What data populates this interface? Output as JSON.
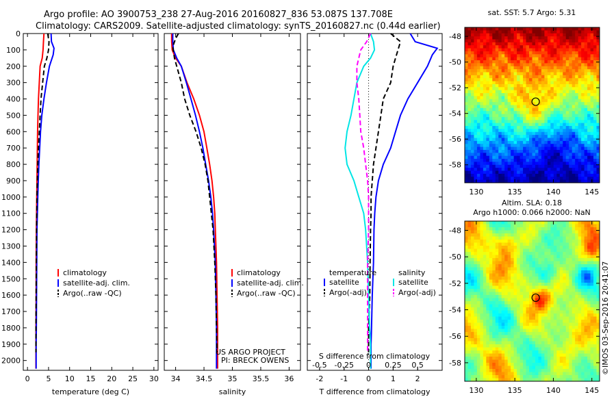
{
  "header": {
    "title_line1": "Argo profile: AO 3900753_238 27-Aug-2016 20160827_836 53.087S 137.708E",
    "title_line2": "Climatology: CARS2009. Satellite-adjusted climatology: synTS_20160827.nc (0.44d earlier)"
  },
  "credits": {
    "project": "US ARGO PROJECT",
    "pi": "PI: BRECK OWENS",
    "stamp": "©IMOS 03-Sep-2016 20:41:07"
  },
  "colors": {
    "climatology": "#ff0000",
    "satellite": "#0000ff",
    "argo": "#000000",
    "salinity_satellite": "#00e5e5",
    "salinity_argo": "#ff00ff"
  },
  "legend_profiles": [
    {
      "label": "climatology",
      "color": "#ff0000",
      "dash": false
    },
    {
      "label": "satellite-adj. clim.",
      "color": "#0000ff",
      "dash": false
    },
    {
      "label": "Argo(..raw -QC)",
      "color": "#000000",
      "dash": true
    }
  ],
  "legend_diff": {
    "temperature_header": "temperature",
    "salinity_header": "salinity",
    "temperature_items": [
      {
        "label": "satellite",
        "color": "#0000ff",
        "dash": false
      },
      {
        "label": "Argo(-adj)",
        "color": "#000000",
        "dash": true
      }
    ],
    "salinity_items": [
      {
        "label": "satellite",
        "color": "#00e5e5",
        "dash": false
      },
      {
        "label": "Argo(-adj)",
        "color": "#ff00ff",
        "dash": true
      }
    ]
  },
  "chart_data": [
    {
      "type": "line",
      "xlabel": "temperature (deg C)",
      "xlim": [
        -1,
        31
      ],
      "xticks": [
        0,
        5,
        10,
        15,
        20,
        25,
        30
      ],
      "ylabel": "",
      "ylim": [
        2060,
        0
      ],
      "yticks": [
        0,
        100,
        200,
        300,
        400,
        500,
        600,
        700,
        800,
        900,
        1000,
        1100,
        1200,
        1300,
        1400,
        1500,
        1600,
        1700,
        1800,
        1900,
        2000
      ],
      "series": [
        {
          "name": "climatology",
          "color": "#ff0000",
          "dash": false,
          "x": [
            3.9,
            3.8,
            3.7,
            3.5,
            3.0,
            2.8,
            2.6,
            2.5,
            2.4,
            2.35,
            2.3,
            2.25,
            2.2,
            2.15,
            2.1,
            2.05,
            2.05,
            2.0,
            2.0,
            2.0
          ],
          "y": [
            0,
            50,
            100,
            150,
            200,
            300,
            400,
            500,
            600,
            700,
            800,
            900,
            1000,
            1100,
            1200,
            1400,
            1600,
            1800,
            1900,
            2050
          ]
        },
        {
          "name": "satellite-adj. clim.",
          "color": "#0000ff",
          "dash": false,
          "x": [
            5.6,
            5.7,
            6.3,
            6.1,
            5.2,
            4.5,
            3.9,
            3.4,
            3.1,
            2.9,
            2.7,
            2.55,
            2.45,
            2.35,
            2.25,
            2.2,
            2.15,
            2.1,
            2.05,
            2.05
          ],
          "y": [
            0,
            50,
            90,
            130,
            200,
            300,
            400,
            500,
            600,
            700,
            800,
            900,
            1000,
            1100,
            1200,
            1400,
            1600,
            1800,
            1900,
            2050
          ]
        },
        {
          "name": "Argo(..raw -QC)",
          "color": "#000000",
          "dash": true,
          "x": [
            4.8,
            5.1,
            5.0,
            4.6,
            4.0,
            3.6,
            3.2,
            3.0,
            2.8,
            2.6,
            2.45,
            2.35,
            2.25,
            2.2,
            2.15,
            2.1,
            2.05,
            2.0,
            2.0
          ],
          "y": [
            0,
            50,
            100,
            150,
            200,
            300,
            400,
            500,
            600,
            700,
            800,
            900,
            1000,
            1100,
            1200,
            1400,
            1600,
            1800,
            1950
          ]
        }
      ]
    },
    {
      "type": "line",
      "xlabel": "salinity",
      "xlim": [
        33.8,
        36.2
      ],
      "xticks": [
        34,
        34.5,
        35,
        35.5,
        36
      ],
      "ylim": [
        2060,
        0
      ],
      "series": [
        {
          "name": "climatology",
          "color": "#ff0000",
          "dash": false,
          "x": [
            33.93,
            33.93,
            33.94,
            34.0,
            34.1,
            34.2,
            34.32,
            34.42,
            34.5,
            34.55,
            34.6,
            34.64,
            34.67,
            34.69,
            34.7,
            34.72,
            34.73,
            34.74,
            34.74,
            34.74
          ],
          "y": [
            0,
            50,
            100,
            150,
            200,
            300,
            400,
            500,
            600,
            700,
            800,
            900,
            1000,
            1100,
            1200,
            1400,
            1600,
            1800,
            1900,
            2050
          ]
        },
        {
          "name": "satellite-adj. clim.",
          "color": "#0000ff",
          "dash": false,
          "x": [
            33.95,
            33.95,
            33.96,
            34.02,
            34.1,
            34.19,
            34.27,
            34.35,
            34.42,
            34.48,
            34.53,
            34.58,
            34.62,
            34.65,
            34.67,
            34.7,
            34.71,
            34.72,
            34.72,
            34.72
          ],
          "y": [
            0,
            50,
            100,
            150,
            200,
            300,
            400,
            500,
            600,
            700,
            800,
            900,
            1000,
            1100,
            1200,
            1400,
            1600,
            1800,
            1900,
            2050
          ]
        },
        {
          "name": "Argo(..raw -QC)",
          "color": "#000000",
          "dash": true,
          "x": [
            34.05,
            34.0,
            33.95,
            33.98,
            34.02,
            34.1,
            34.16,
            34.25,
            34.36,
            34.45,
            34.52,
            34.57,
            34.6,
            34.63,
            34.66,
            34.69,
            34.71,
            34.72,
            34.73
          ],
          "y": [
            0,
            30,
            80,
            150,
            200,
            300,
            400,
            500,
            600,
            700,
            800,
            900,
            1000,
            1100,
            1200,
            1400,
            1600,
            1800,
            1950
          ]
        }
      ]
    },
    {
      "type": "line",
      "xlabel": "T difference from climatology",
      "xlim": [
        -2.5,
        3
      ],
      "xticks": [
        -2,
        -1,
        0,
        1,
        2
      ],
      "top_axis_label": "S difference from climatology",
      "top_ticks": [
        -0.5,
        -0.25,
        0,
        0.25,
        0.5
      ],
      "ylim": [
        2060,
        0
      ],
      "series": [
        {
          "name": "temperature satellite",
          "color": "#0000ff",
          "dash": false,
          "x": [
            1.7,
            1.9,
            2.8,
            2.6,
            2.4,
            2.0,
            1.6,
            1.3,
            1.1,
            0.9,
            0.6,
            0.4,
            0.3,
            0.25,
            0.22,
            0.2,
            0.15,
            0.12,
            0.1,
            0.1
          ],
          "y": [
            0,
            50,
            90,
            130,
            200,
            300,
            400,
            500,
            600,
            700,
            800,
            900,
            1000,
            1100,
            1200,
            1400,
            1600,
            1800,
            1900,
            2050
          ]
        },
        {
          "name": "temperature Argo(-adj)",
          "color": "#000000",
          "dash": true,
          "x": [
            0.9,
            1.3,
            1.2,
            1.1,
            1.0,
            0.9,
            0.6,
            0.5,
            0.4,
            0.3,
            0.2,
            0.15,
            0.1,
            0.1,
            0.08,
            0.06,
            0.05,
            0.0,
            0.0
          ],
          "y": [
            0,
            50,
            100,
            150,
            200,
            300,
            400,
            500,
            600,
            700,
            800,
            900,
            1000,
            1100,
            1200,
            1400,
            1600,
            1800,
            1950
          ]
        },
        {
          "name": "salinity satellite",
          "color": "#00e5e5",
          "dash": false,
          "x": [
            0.02,
            0.05,
            0.06,
            0.02,
            -0.05,
            -0.12,
            -0.15,
            -0.18,
            -0.22,
            -0.24,
            -0.22,
            -0.15,
            -0.1,
            -0.05,
            -0.03,
            -0.01,
            0.0,
            0.01,
            0.02,
            0.02
          ],
          "y": [
            0,
            50,
            100,
            150,
            200,
            300,
            400,
            500,
            600,
            700,
            800,
            900,
            1000,
            1100,
            1200,
            1400,
            1600,
            1800,
            1900,
            2050
          ]
        },
        {
          "name": "salinity Argo(-adj)",
          "color": "#ff00ff",
          "dash": true,
          "x": [
            0.02,
            -0.02,
            -0.08,
            -0.1,
            -0.12,
            -0.12,
            -0.1,
            -0.09,
            -0.08,
            -0.05,
            -0.03,
            -0.01,
            0.0,
            0.0,
            0.0,
            -0.01,
            -0.01,
            -0.01,
            -0.01
          ],
          "y": [
            0,
            50,
            100,
            150,
            200,
            300,
            400,
            500,
            600,
            700,
            800,
            900,
            1000,
            1100,
            1200,
            1400,
            1600,
            1800,
            1950
          ]
        }
      ]
    },
    {
      "type": "heatmap",
      "title": "sat. SST: 5.7 Argo: 5.31",
      "xlim": [
        128.5,
        146
      ],
      "ylim": [
        -59.4,
        -47.3
      ],
      "xticks": [
        130,
        135,
        140,
        145
      ],
      "yticks": [
        -48,
        -50,
        -52,
        -54,
        -56,
        -58
      ],
      "marker": {
        "lon": 137.708,
        "lat": -53.087
      }
    },
    {
      "type": "heatmap",
      "title_line1": "Altim. SLA: 0.18",
      "title_line2": "Argo h1000: 0.066 h2000: NaN",
      "xlim": [
        128.5,
        146
      ],
      "ylim": [
        -59.4,
        -47.3
      ],
      "xticks": [
        130,
        135,
        140,
        145
      ],
      "yticks": [
        -48,
        -50,
        -52,
        -54,
        -56,
        -58
      ],
      "marker": {
        "lon": 137.708,
        "lat": -53.087
      }
    }
  ]
}
